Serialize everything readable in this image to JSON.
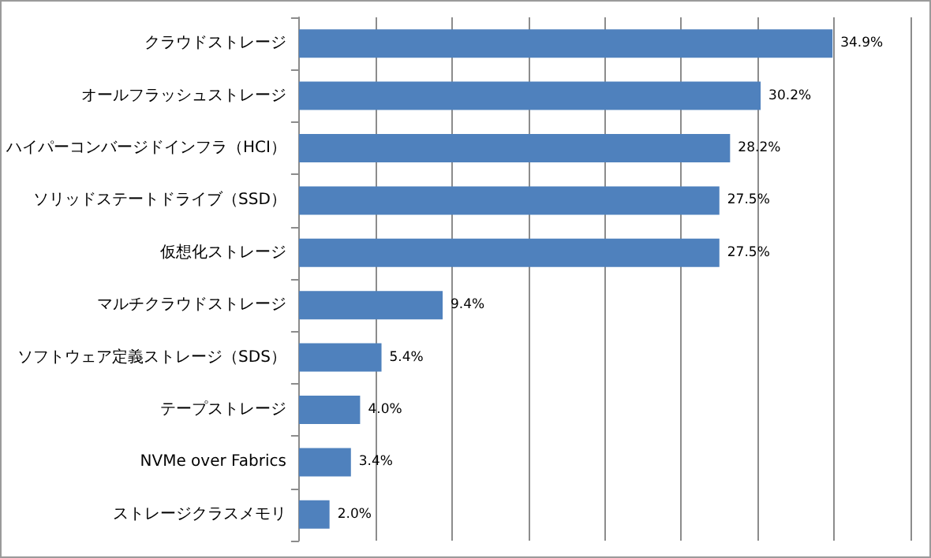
{
  "chart_data": {
    "type": "bar",
    "orientation": "horizontal",
    "categories": [
      "クラウドストレージ",
      "オールフラッシュストレージ",
      "ハイパーコンバージドインフラ（HCI）",
      "ソリッドステートドライブ（SSD）",
      "仮想化ストレージ",
      "マルチクラウドストレージ",
      "ソフトウェア定義ストレージ（SDS）",
      "テープストレージ",
      "NVMe over Fabrics",
      "ストレージクラスメモリ"
    ],
    "values": [
      34.9,
      30.2,
      28.2,
      27.5,
      27.5,
      9.4,
      5.4,
      4.0,
      3.4,
      2.0
    ],
    "value_labels": [
      "34.9%",
      "30.2%",
      "28.2%",
      "27.5%",
      "27.5%",
      "9.4%",
      "5.4%",
      "4.0%",
      "3.4%",
      "2.0%"
    ],
    "color": "#4f81bd",
    "xlim": [
      0,
      40
    ],
    "xticks": [
      {
        "value": 0,
        "label": null
      },
      {
        "value": 5,
        "label": null
      },
      {
        "value": 10,
        "label": null
      },
      {
        "value": 15,
        "label": null
      },
      {
        "value": 20,
        "label": null
      },
      {
        "value": 25,
        "label": null
      },
      {
        "value": 30,
        "label": null
      },
      {
        "value": 35,
        "label": null
      },
      {
        "value": 40,
        "label": null
      }
    ],
    "grid": "x",
    "tick_labels": "y"
  }
}
